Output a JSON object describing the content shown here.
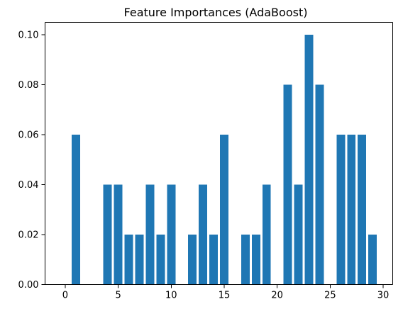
{
  "chart_data": {
    "type": "bar",
    "title": "Feature Importances (AdaBoost)",
    "xlabel": "",
    "ylabel": "",
    "x": [
      0,
      1,
      2,
      3,
      4,
      5,
      6,
      7,
      8,
      9,
      10,
      11,
      12,
      13,
      14,
      15,
      16,
      17,
      18,
      19,
      20,
      21,
      22,
      23,
      24,
      25,
      26,
      27,
      28,
      29
    ],
    "values": [
      0.0,
      0.06,
      0.0,
      0.0,
      0.04,
      0.04,
      0.02,
      0.02,
      0.04,
      0.02,
      0.04,
      0.0,
      0.02,
      0.04,
      0.02,
      0.06,
      0.0,
      0.02,
      0.02,
      0.04,
      0.0,
      0.08,
      0.04,
      0.1,
      0.08,
      0.0,
      0.06,
      0.06,
      0.06,
      0.02
    ],
    "xlim": [
      -1.9,
      30.9
    ],
    "ylim": [
      0,
      0.105
    ],
    "xticks": [
      0,
      5,
      10,
      15,
      20,
      25,
      30
    ],
    "xtick_labels": [
      "0",
      "5",
      "10",
      "15",
      "20",
      "25",
      "30"
    ],
    "yticks": [
      0.0,
      0.02,
      0.04,
      0.06,
      0.08,
      0.1
    ],
    "ytick_labels": [
      "0.00",
      "0.02",
      "0.04",
      "0.06",
      "0.08",
      "0.10"
    ],
    "bar_color": "#1f77b4",
    "grid": false,
    "legend": "none"
  }
}
